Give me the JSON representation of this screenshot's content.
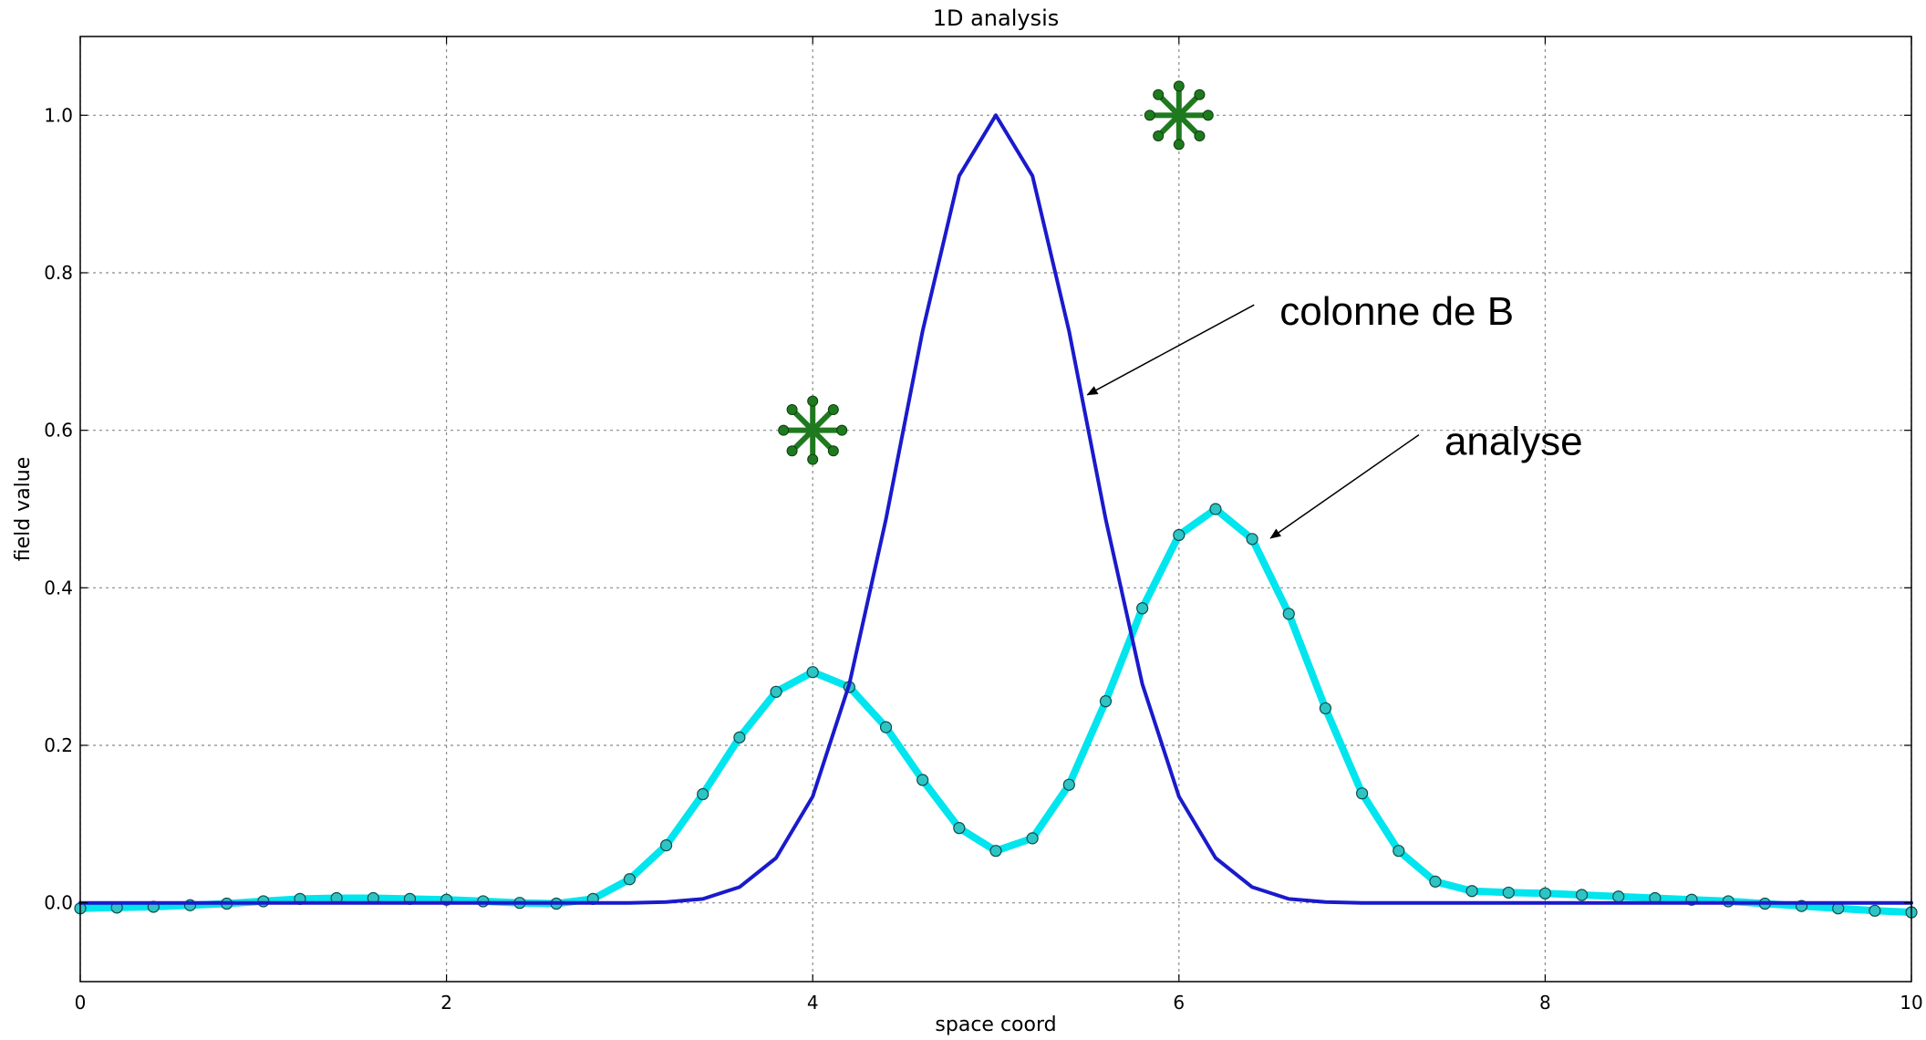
{
  "chart_data": {
    "type": "line",
    "title": "1D analysis",
    "xlabel": "space coord",
    "ylabel": "field value",
    "xlim": [
      0,
      10
    ],
    "ylim": [
      -0.1,
      1.1
    ],
    "xticks": [
      "0",
      "2",
      "4",
      "6",
      "8",
      "10"
    ],
    "yticks": [
      "0.0",
      "0.2",
      "0.4",
      "0.6",
      "0.8",
      "1.0"
    ],
    "grid": true,
    "series": [
      {
        "name": "colonne de B",
        "color": "#1a1acc",
        "marker": "none",
        "x": [
          0,
          0.2,
          0.4,
          0.6,
          0.8,
          1.0,
          1.2,
          1.4,
          1.6,
          1.8,
          2.0,
          2.2,
          2.4,
          2.6,
          2.8,
          3.0,
          3.2,
          3.4,
          3.6,
          3.8,
          4.0,
          4.2,
          4.4,
          4.6,
          4.8,
          5.0,
          5.2,
          5.4,
          5.6,
          5.8,
          6.0,
          6.2,
          6.4,
          6.6,
          6.8,
          7.0,
          7.2,
          7.4,
          7.6,
          7.8,
          8.0,
          8.2,
          8.4,
          8.6,
          8.8,
          9.0,
          9.2,
          9.4,
          9.6,
          9.8,
          10.0
        ],
        "y": [
          0,
          0,
          0,
          0,
          0,
          0,
          0,
          0,
          0,
          0,
          0,
          0,
          0,
          0,
          0,
          0,
          0.001,
          0.005,
          0.02,
          0.057,
          0.135,
          0.278,
          0.487,
          0.726,
          0.923,
          1.0,
          0.923,
          0.726,
          0.487,
          0.278,
          0.135,
          0.057,
          0.02,
          0.005,
          0.001,
          0,
          0,
          0,
          0,
          0,
          0,
          0,
          0,
          0,
          0,
          0,
          0,
          0,
          0,
          0,
          0
        ]
      },
      {
        "name": "analyse",
        "color": "#00e5ee",
        "marker": "circle",
        "x": [
          0,
          0.2,
          0.4,
          0.6,
          0.8,
          1.0,
          1.2,
          1.4,
          1.6,
          1.8,
          2.0,
          2.2,
          2.4,
          2.6,
          2.8,
          3.0,
          3.2,
          3.4,
          3.6,
          3.8,
          4.0,
          4.2,
          4.4,
          4.6,
          4.8,
          5.0,
          5.2,
          5.4,
          5.6,
          5.8,
          6.0,
          6.2,
          6.4,
          6.6,
          6.8,
          7.0,
          7.2,
          7.4,
          7.6,
          7.8,
          8.0,
          8.2,
          8.4,
          8.6,
          8.8,
          9.0,
          9.2,
          9.4,
          9.6,
          9.8,
          10.0
        ],
        "y": [
          -0.007,
          -0.006,
          -0.005,
          -0.003,
          -0.001,
          0.002,
          0.005,
          0.006,
          0.006,
          0.005,
          0.004,
          0.002,
          0.0,
          -0.001,
          0.005,
          0.03,
          0.073,
          0.138,
          0.21,
          0.268,
          0.293,
          0.274,
          0.223,
          0.156,
          0.095,
          0.066,
          0.082,
          0.15,
          0.256,
          0.374,
          0.467,
          0.5,
          0.462,
          0.367,
          0.247,
          0.139,
          0.066,
          0.027,
          0.015,
          0.013,
          0.012,
          0.01,
          0.008,
          0.006,
          0.004,
          0.002,
          -0.001,
          -0.004,
          -0.007,
          -0.01,
          -0.012
        ]
      }
    ],
    "annotations": [
      {
        "text": "colonne de B",
        "text_x": 6.55,
        "text_y": 0.75,
        "arrow_x": 5.5,
        "arrow_y": 0.645
      },
      {
        "text": "analyse",
        "text_x": 7.45,
        "text_y": 0.585,
        "arrow_x": 6.5,
        "arrow_y": 0.463
      }
    ],
    "star_markers": [
      {
        "x": 4.0,
        "y": 0.6,
        "color": "#1f7a1f"
      },
      {
        "x": 6.0,
        "y": 1.0,
        "color": "#1f7a1f"
      }
    ]
  }
}
